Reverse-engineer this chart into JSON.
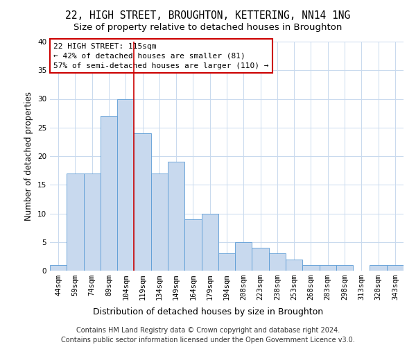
{
  "title_line1": "22, HIGH STREET, BROUGHTON, KETTERING, NN14 1NG",
  "title_line2": "Size of property relative to detached houses in Broughton",
  "xlabel": "Distribution of detached houses by size in Broughton",
  "ylabel": "Number of detached properties",
  "categories": [
    "44sqm",
    "59sqm",
    "74sqm",
    "89sqm",
    "104sqm",
    "119sqm",
    "134sqm",
    "149sqm",
    "164sqm",
    "179sqm",
    "194sqm",
    "208sqm",
    "223sqm",
    "238sqm",
    "253sqm",
    "268sqm",
    "283sqm",
    "298sqm",
    "313sqm",
    "328sqm",
    "343sqm"
  ],
  "values": [
    1,
    17,
    17,
    27,
    30,
    24,
    17,
    19,
    9,
    10,
    3,
    5,
    4,
    3,
    2,
    1,
    1,
    1,
    0,
    1,
    1
  ],
  "bar_color": "#c8d9ee",
  "bar_edge_color": "#5b9bd5",
  "vline_x": 4.5,
  "vline_color": "#cc0000",
  "annotation_line1": "22 HIGH STREET: 115sqm",
  "annotation_line2": "← 42% of detached houses are smaller (81)",
  "annotation_line3": "57% of semi-detached houses are larger (110) →",
  "annotation_box_color": "#ffffff",
  "annotation_box_edge_color": "#cc0000",
  "ylim": [
    0,
    40
  ],
  "yticks": [
    0,
    5,
    10,
    15,
    20,
    25,
    30,
    35,
    40
  ],
  "grid_color": "#c8d9ee",
  "bg_color": "#ffffff",
  "footer_line1": "Contains HM Land Registry data © Crown copyright and database right 2024.",
  "footer_line2": "Contains public sector information licensed under the Open Government Licence v3.0.",
  "title_fontsize": 10.5,
  "subtitle_fontsize": 9.5,
  "xlabel_fontsize": 9,
  "ylabel_fontsize": 8.5,
  "tick_fontsize": 7.5,
  "ann_fontsize": 8,
  "footer_fontsize": 7
}
